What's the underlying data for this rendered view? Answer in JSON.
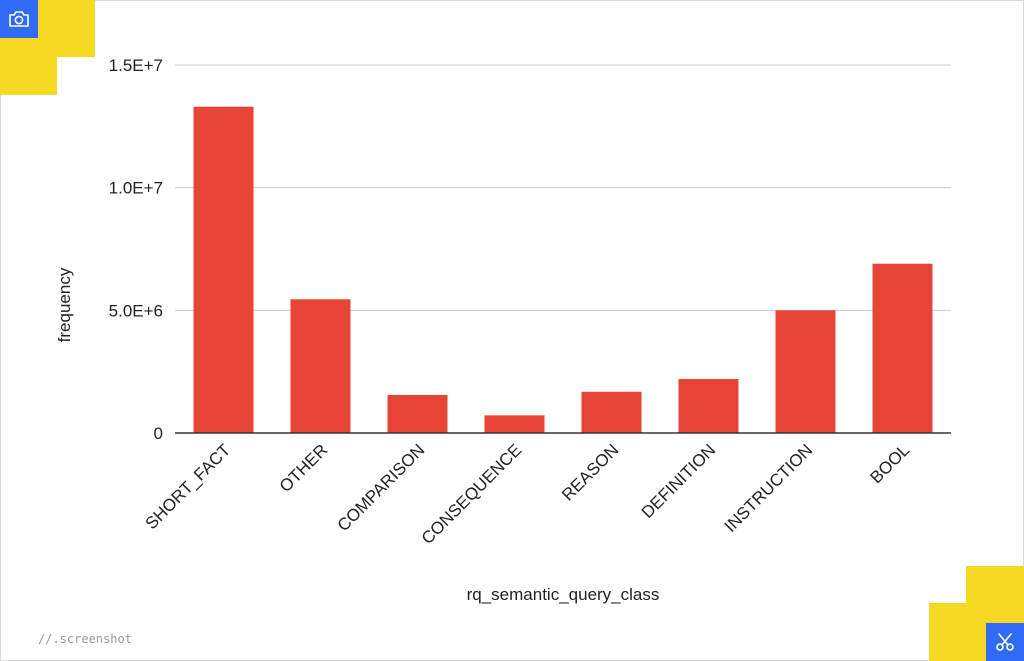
{
  "watermark": "//.screenshot",
  "icons": {
    "top_left": "camera-icon",
    "bottom_right": "scissors-icon"
  },
  "colors": {
    "bar": "#e64535",
    "accent_yellow": "#f7d923",
    "accent_blue": "#2f6bf5"
  },
  "chart_data": {
    "type": "bar",
    "title": "",
    "xlabel": "rq_semantic_query_class",
    "ylabel": "frequency",
    "categories": [
      "SHORT_FACT",
      "OTHER",
      "COMPARISON",
      "CONSEQUENCE",
      "REASON",
      "DEFINITION",
      "INSTRUCTION",
      "BOOL"
    ],
    "values": [
      13300000,
      5450000,
      1550000,
      720000,
      1680000,
      2200000,
      5000000,
      6900000
    ],
    "ylim": [
      0,
      15000000
    ],
    "yticks": [
      0,
      5000000,
      10000000,
      15000000
    ],
    "ytick_labels": [
      "0",
      "5.0E+6",
      "1.0E+7",
      "1.5E+7"
    ],
    "grid": true,
    "legend": "none"
  }
}
